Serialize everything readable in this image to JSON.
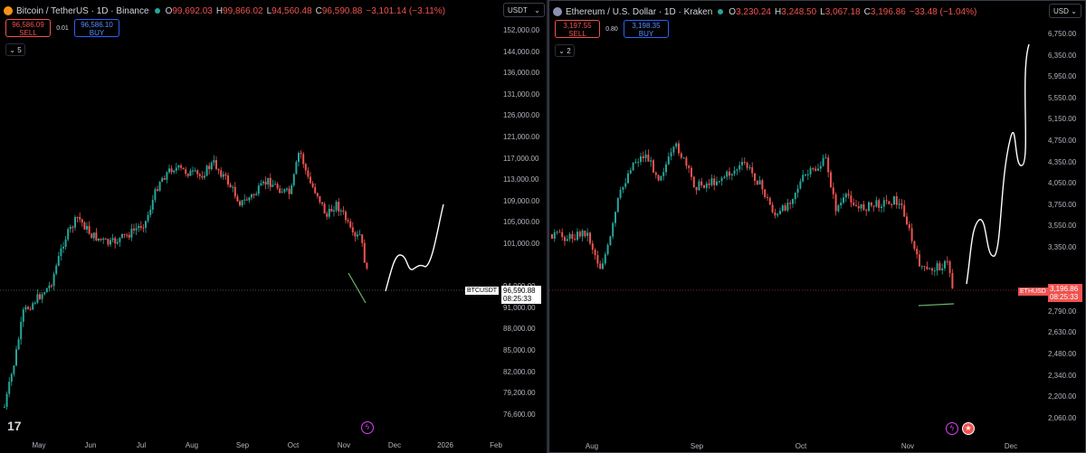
{
  "left": {
    "title": "Bitcoin / TetherUS · 1D · Binance",
    "ohlc": [
      {
        "k": "O",
        "v": "99,692.03"
      },
      {
        "k": "H",
        "v": "99,866.02"
      },
      {
        "k": "L",
        "v": "94,560.48"
      },
      {
        "k": "C",
        "v": "96,590.88"
      },
      {
        "k": "",
        "v": "−3,101.14 (−3.11%)"
      }
    ],
    "sell_price": "96,586.09",
    "sell_label": "SELL",
    "spread": "0.01",
    "buy_price": "96,586.10",
    "buy_label": "BUY",
    "indicators_count": "5",
    "currency": "USDT",
    "y_labels": [
      "152,000.00",
      "144,000.00",
      "136,000.00",
      "131,000.00",
      "126,000.00",
      "121,000.00",
      "117,000.00",
      "113,000.00",
      "109,000.00",
      "105,000.00",
      "101,000.00",
      "96,590.88",
      "94,000.00",
      "91,000.00",
      "88,000.00",
      "85,000.00",
      "82,000.00",
      "79,200.00",
      "76,600.00"
    ],
    "x_labels": [
      "May",
      "Jun",
      "Jul",
      "Aug",
      "Sep",
      "Oct",
      "Nov",
      "Dec",
      "2026",
      "Feb"
    ],
    "symbol_tag": "BTCUSDT",
    "last_price": "96,590.88",
    "countdown": "08:25:33",
    "colors": {
      "up": "#26a69a",
      "down": "#ef5350"
    }
  },
  "right": {
    "title": "Ethereum / U.S. Dollar · 1D · Kraken",
    "ohlc": [
      {
        "k": "O",
        "v": "3,230.24"
      },
      {
        "k": "H",
        "v": "3,248.50"
      },
      {
        "k": "L",
        "v": "3,067.18"
      },
      {
        "k": "C",
        "v": "3,196.86"
      },
      {
        "k": "",
        "v": "−33.48 (−1.04%)"
      }
    ],
    "sell_price": "3,197.55",
    "sell_label": "SELL",
    "spread": "0.80",
    "buy_price": "3,198.35",
    "buy_label": "BUY",
    "indicators_count": "2",
    "currency": "USD",
    "y_labels": [
      "6,750.00",
      "6,350.00",
      "5,950.00",
      "5,550.00",
      "5,150.00",
      "4,750.00",
      "4,350.00",
      "4,050.00",
      "3,750.00",
      "3,550.00",
      "3,350.00",
      "3,196.86",
      "2,950.00",
      "2,790.00",
      "2,630.00",
      "2,480.00",
      "2,340.00",
      "2,200.00",
      "2,060.00"
    ],
    "x_labels": [
      "Aug",
      "Sep",
      "Oct",
      "Nov",
      "Dec"
    ],
    "symbol_tag": "ETHUSD",
    "last_price": "3,196.86",
    "countdown": "08:25:33",
    "colors": {
      "up": "#26a69a",
      "down": "#ef5350"
    }
  }
}
